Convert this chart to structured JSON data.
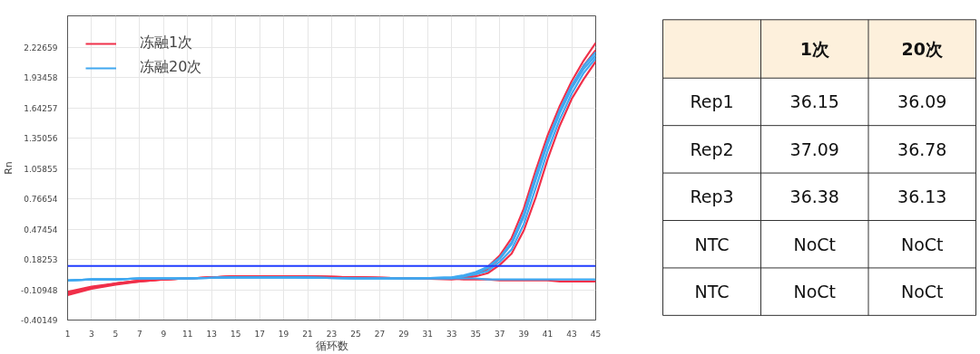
{
  "chart_data": [
    {
      "type": "line",
      "xlabel": "循环数",
      "ylabel": "Rn",
      "x": [
        1,
        3,
        5,
        7,
        9,
        11,
        15,
        20,
        25,
        30,
        33,
        34,
        35,
        36,
        37,
        38,
        39,
        40,
        41,
        42,
        43,
        44,
        45
      ],
      "xlim": [
        1,
        45
      ],
      "xticks": [
        1,
        3,
        5,
        7,
        9,
        11,
        13,
        15,
        17,
        19,
        21,
        23,
        25,
        27,
        29,
        31,
        33,
        35,
        37,
        39,
        41,
        43,
        45
      ],
      "ylim": [
        -0.40149,
        2.53
      ],
      "yticks": [
        -0.40149,
        -0.10948,
        0.18253,
        0.47454,
        0.76654,
        1.05855,
        1.35056,
        1.64257,
        1.93458,
        2.22659
      ],
      "grid": true,
      "legend": "top left",
      "line_style": "solid",
      "ref_lines": [
        {
          "axis": "y",
          "value": 0.12,
          "color": "#1f3cff"
        }
      ],
      "series": [
        {
          "name": "冻融1次",
          "color": "#f0304a",
          "values": [
            -0.16,
            -0.1,
            -0.06,
            -0.03,
            -0.01,
            0.0,
            0.02,
            0.02,
            0.01,
            0.0,
            0.0,
            0.02,
            0.05,
            0.11,
            0.22,
            0.39,
            0.67,
            1.04,
            1.38,
            1.66,
            1.9,
            2.1,
            2.27
          ]
        },
        {
          "color": "#f0304a",
          "values": [
            -0.15,
            -0.09,
            -0.05,
            -0.03,
            -0.01,
            0.0,
            0.02,
            0.02,
            0.01,
            0.0,
            -0.01,
            0.0,
            0.02,
            0.05,
            0.13,
            0.24,
            0.46,
            0.78,
            1.15,
            1.47,
            1.73,
            1.92,
            2.09
          ]
        },
        {
          "color": "#f0304a",
          "values": [
            -0.14,
            -0.09,
            -0.05,
            -0.02,
            -0.01,
            0.0,
            0.02,
            0.02,
            0.01,
            0.0,
            0.0,
            0.01,
            0.04,
            0.09,
            0.19,
            0.34,
            0.6,
            0.97,
            1.32,
            1.61,
            1.85,
            2.05,
            2.2
          ]
        },
        {
          "color": "#f0304a",
          "values": [
            -0.13,
            -0.08,
            -0.05,
            -0.02,
            -0.01,
            0.0,
            0.02,
            0.02,
            0.01,
            0.0,
            0.0,
            -0.01,
            -0.01,
            -0.01,
            -0.02,
            -0.02,
            -0.02,
            -0.02,
            -0.02,
            -0.03,
            -0.03,
            -0.03,
            -0.03
          ]
        },
        {
          "name": "冻融20次",
          "color": "#40a8f0",
          "values": [
            -0.02,
            -0.01,
            -0.01,
            0.0,
            0.0,
            0.0,
            0.01,
            0.01,
            0.0,
            0.0,
            0.01,
            0.03,
            0.06,
            0.11,
            0.2,
            0.35,
            0.62,
            0.99,
            1.33,
            1.62,
            1.86,
            2.05,
            2.18
          ]
        },
        {
          "color": "#40a8f0",
          "values": [
            -0.02,
            -0.01,
            -0.01,
            0.0,
            0.0,
            0.0,
            0.01,
            0.01,
            0.0,
            0.0,
            0.0,
            0.02,
            0.04,
            0.07,
            0.16,
            0.28,
            0.52,
            0.87,
            1.23,
            1.53,
            1.78,
            1.98,
            2.12
          ]
        },
        {
          "color": "#40a8f0",
          "values": [
            -0.02,
            -0.01,
            -0.01,
            0.0,
            0.0,
            0.0,
            0.01,
            0.01,
            0.0,
            0.0,
            0.01,
            0.02,
            0.05,
            0.1,
            0.19,
            0.33,
            0.59,
            0.95,
            1.3,
            1.59,
            1.83,
            2.02,
            2.15
          ]
        },
        {
          "color": "#40a8f0",
          "values": [
            -0.02,
            -0.01,
            -0.01,
            0.0,
            0.0,
            0.0,
            0.01,
            0.01,
            0.0,
            0.0,
            0.0,
            0.0,
            0.0,
            -0.01,
            -0.01,
            -0.01,
            -0.01,
            -0.01,
            -0.01,
            -0.01,
            -0.01,
            -0.01,
            -0.01
          ]
        }
      ]
    },
    {
      "type": "other",
      "categories": [
        "1次",
        "20次"
      ],
      "y_categories": [
        "Rep1",
        "Rep2",
        "Rep3",
        "NTC",
        "NTC"
      ],
      "cell_labels": [
        [
          "36.15",
          "36.09"
        ],
        [
          "37.09",
          "36.78"
        ],
        [
          "36.38",
          "36.13"
        ],
        [
          "NoCt",
          "NoCt"
        ],
        [
          "NoCt",
          "NoCt"
        ]
      ]
    }
  ]
}
